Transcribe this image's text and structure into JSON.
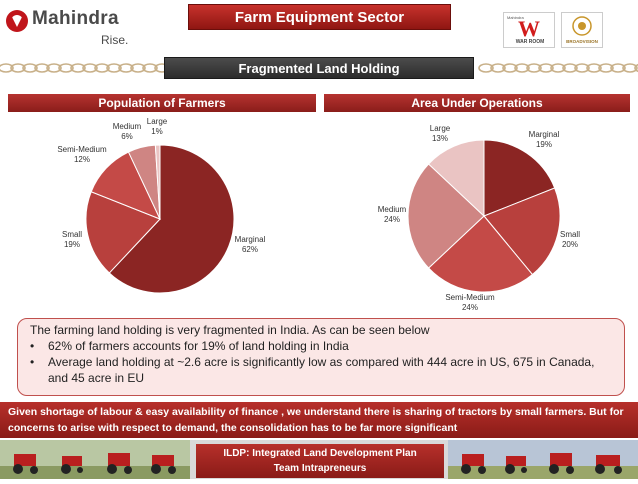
{
  "header": {
    "brand": "Mahindra",
    "brand_tagline": "Rise.",
    "sector_title": "Farm Equipment Sector",
    "slide_title": "Fragmented Land Holding",
    "warroom_small": "Mahindra",
    "warroom_big": "W",
    "warroom_label": "WAR ROOM",
    "broadvision_label": "BROADVISION"
  },
  "colors": {
    "accent": "#a7231f",
    "pie": [
      "#8b2523",
      "#b8403d",
      "#c44a47",
      "#cf8583",
      "#eac4c3"
    ]
  },
  "chart_data": [
    {
      "type": "pie",
      "title": "Population of Farmers",
      "categories": [
        "Marginal",
        "Small",
        "Semi-Medium",
        "Medium",
        "Large"
      ],
      "values": [
        62,
        19,
        12,
        6,
        1
      ],
      "value_labels": [
        "62%",
        "19%",
        "12%",
        "6%",
        "1%"
      ]
    },
    {
      "type": "pie",
      "title": "Area Under Operations",
      "categories": [
        "Marginal",
        "Small",
        "Semi-Medium",
        "Medium",
        "Large"
      ],
      "values": [
        19,
        20,
        24,
        24,
        13
      ],
      "value_labels": [
        "19%",
        "20%",
        "24%",
        "24%",
        "13%"
      ]
    }
  ],
  "note": {
    "intro": "The farming land holding is very fragmented in India. As can be seen below",
    "bullets": [
      "62% of farmers accounts for 19% of land holding in India",
      "Average land holding at ~2.6 acre is significantly low as compared with 444 acre in US, 675 in Canada, and 45 acre in EU"
    ]
  },
  "conclusion": "Given shortage of labour & easy availability of finance , we understand there is sharing of tractors by small farmers. But for concerns to arise with respect to demand, the consolidation has to be far more significant",
  "footer": {
    "line1": "ILDP: Integrated Land Development Plan",
    "line2": "Team Intrapreneurs"
  }
}
